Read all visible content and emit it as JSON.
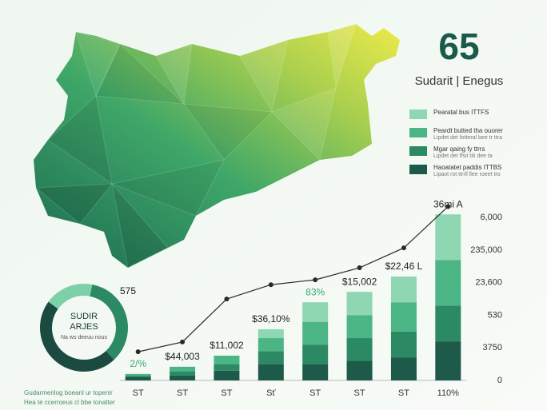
{
  "chart_data": [
    {
      "type": "bar",
      "stacked": true,
      "title": "65",
      "subtitle": "Sudarit | Enegus",
      "categories": [
        "ST",
        "ST",
        "ST",
        "Sť",
        "ST",
        "ST",
        "ST",
        "110%"
      ],
      "series": [
        {
          "name": "Haoatatet paddis ITTBS",
          "note": "Lipaot rot ttrrll llee roeet tro",
          "color": "#1d5a4a",
          "values": [
            0.1,
            0.15,
            0.3,
            0.5,
            0.5,
            0.6,
            0.7,
            1.2
          ]
        },
        {
          "name": "Mgar qaing fy ttrrs",
          "note": "Lipdet det ffsit titi dee ta",
          "color": "#2b8a63",
          "values": [
            0.05,
            0.12,
            0.2,
            0.4,
            0.6,
            0.7,
            0.8,
            1.1
          ]
        },
        {
          "name": "Peardt butted tha ouorer",
          "note": "Lipdet det fotteral bee tr ttra",
          "color": "#4cb585",
          "values": [
            0.05,
            0.15,
            0.26,
            0.4,
            0.7,
            0.7,
            0.9,
            1.4
          ]
        },
        {
          "name": "Pearatal bus ITTFS",
          "color": "#8fd6b2",
          "values": [
            0,
            0,
            0,
            0.27,
            0.6,
            0.72,
            0.79,
            1.4
          ]
        }
      ],
      "line": {
        "color": "#2a2a2a",
        "values": [
          0.88,
          1.18,
          2.5,
          2.94,
          3.09,
          3.46,
          4.07,
          5.34
        ]
      },
      "annotations": [
        {
          "text": "2/%",
          "color": "#3aa776"
        },
        {
          "text": "$44,003",
          "color": "#222"
        },
        {
          "text": "$11,002",
          "color": "#222"
        },
        {
          "text": "$36,10%",
          "color": "#222"
        },
        {
          "text": "83%",
          "color": "#3aa776"
        },
        {
          "text": "$15,002",
          "color": "#222"
        },
        {
          "text": "$22,46 L",
          "color": "#222"
        },
        {
          "text": "36mi A",
          "color": "#222"
        }
      ],
      "ylim": [
        0,
        5.4
      ],
      "yticks": [
        0,
        {
          "value": 1,
          "label": "3750"
        },
        {
          "value": 2,
          "label": "530"
        },
        {
          "value": 3,
          "label": "23,600"
        },
        {
          "value": 4,
          "label": "235,000"
        },
        {
          "value": 5,
          "label": "6,000"
        }
      ],
      "footer": [
        "Gudarmenlog boeanl ur topenir",
        "Hea te ccerroeus cl bbe tonatter"
      ]
    },
    {
      "type": "pie",
      "donut": true,
      "label": "575",
      "center_text": [
        "SUDIR",
        "ARJES",
        "Na ws deeuu nous"
      ],
      "values": [
        18,
        35,
        47
      ],
      "colors": [
        "#7dd0a8",
        "#2b8a63",
        "#1b4a40"
      ]
    }
  ]
}
